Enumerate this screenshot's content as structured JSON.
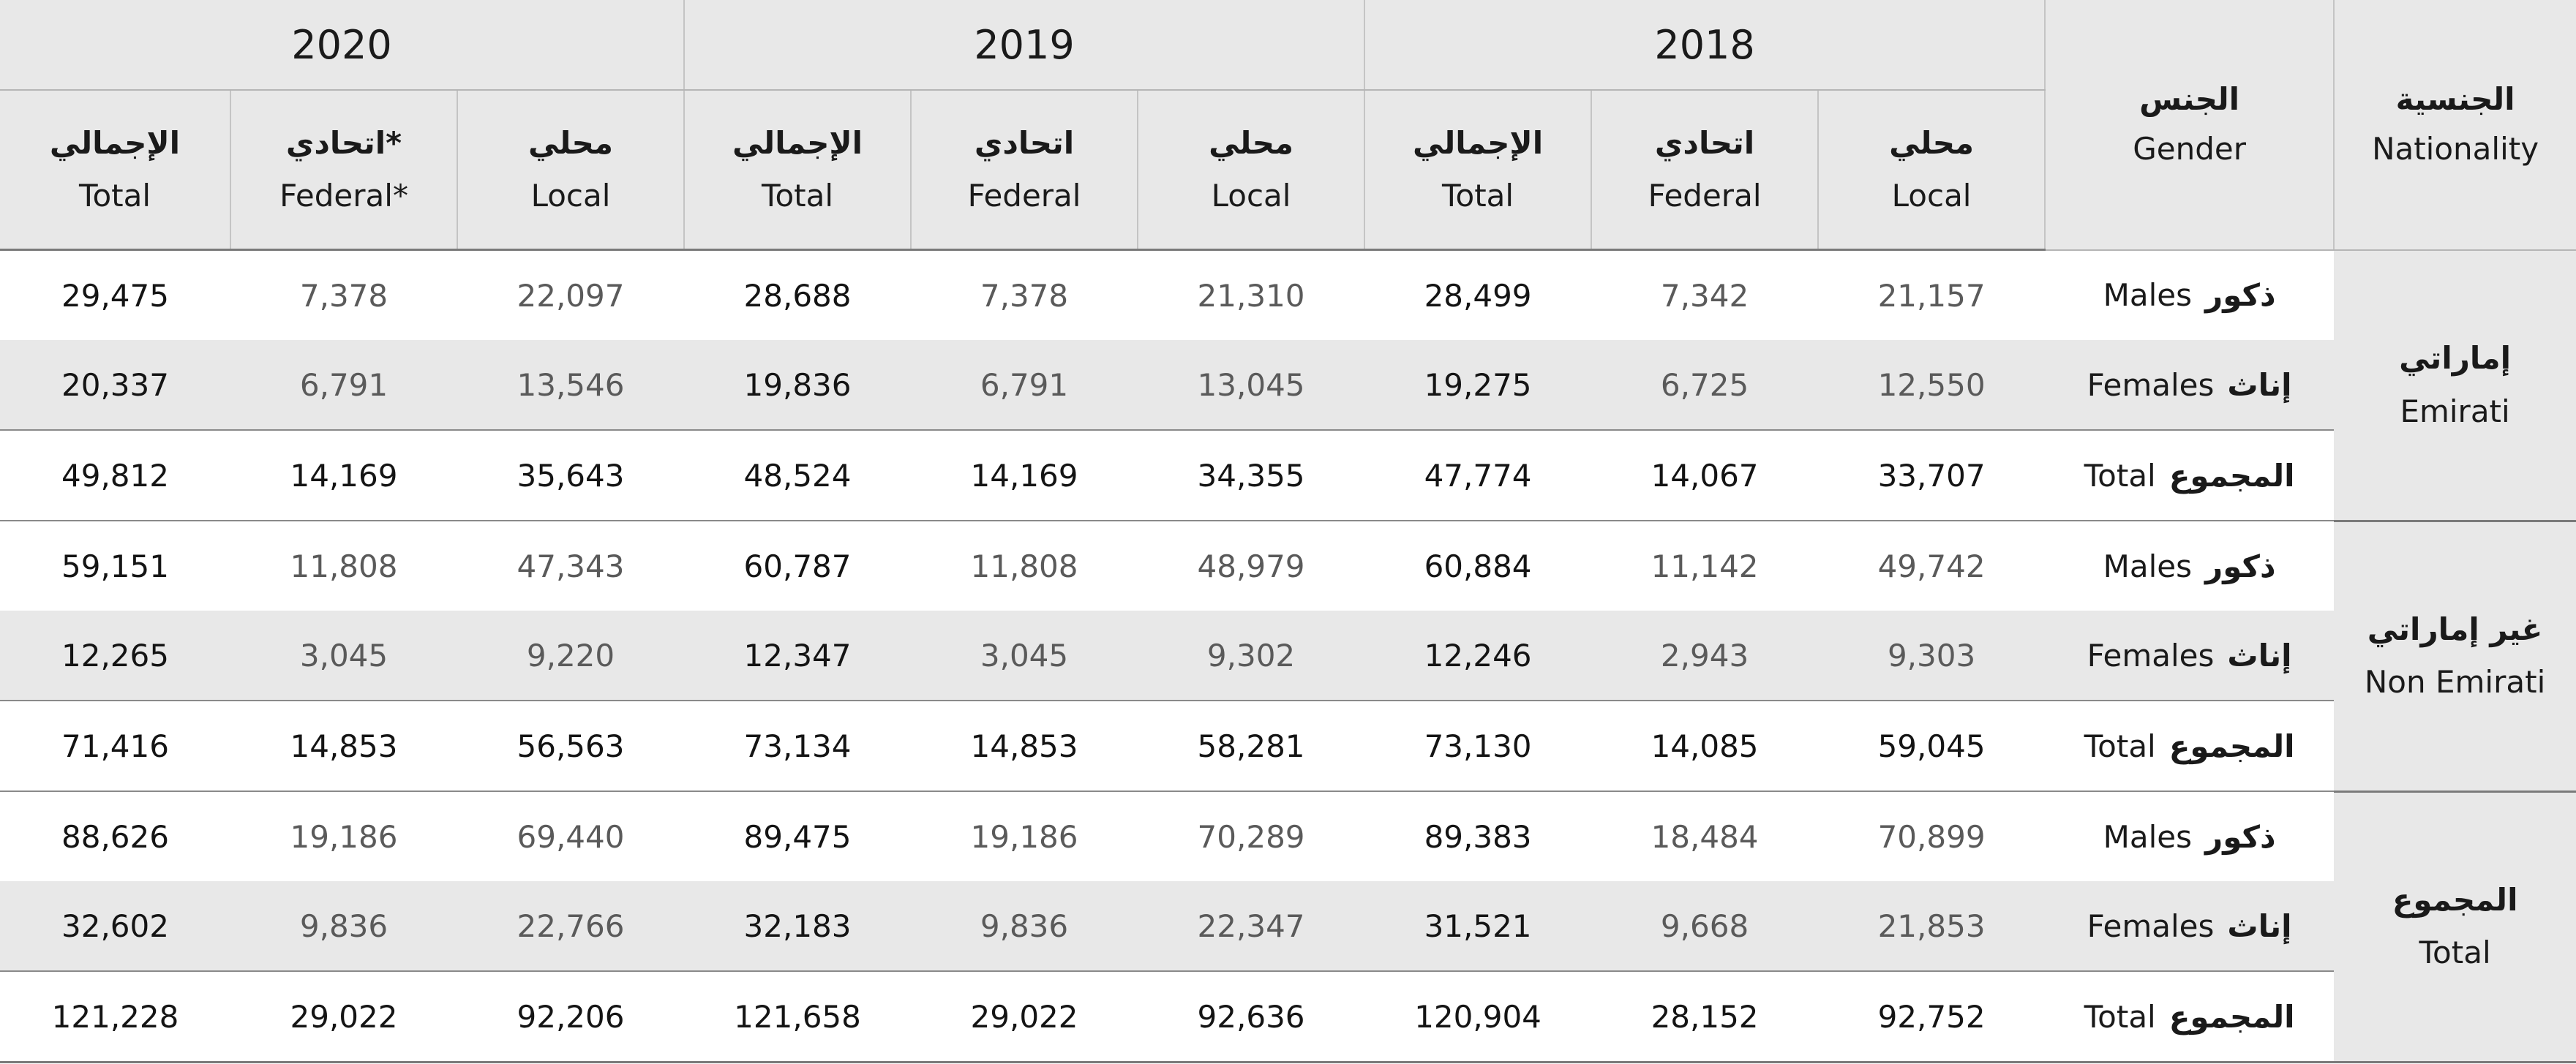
{
  "years": [
    "2020",
    "2019",
    "2018"
  ],
  "sub_headers": {
    "2020": [
      {
        "ar": "الإجمالي",
        "en": "Total"
      },
      {
        "ar": "اتحادي*",
        "en": "Federal*"
      },
      {
        "ar": "محلي",
        "en": "Local"
      }
    ],
    "2019": [
      {
        "ar": "الإجمالي",
        "en": "Total"
      },
      {
        "ar": "اتحادي",
        "en": "Federal"
      },
      {
        "ar": "محلي",
        "en": "Local"
      }
    ],
    "2018": [
      {
        "ar": "الإجمالي",
        "en": "Total"
      },
      {
        "ar": "اتحادي",
        "en": "Federal"
      },
      {
        "ar": "محلي",
        "en": "Local"
      }
    ]
  },
  "gender_header": {
    "ar": "الجنس",
    "en": "Gender"
  },
  "nationality_header": {
    "ar": "الجنسية",
    "en": "Nationality"
  },
  "groups": [
    {
      "nationality": {
        "ar": "إماراتي",
        "en": "Emirati"
      },
      "rows": [
        {
          "gender_ar": "ذكور",
          "gender_en": "Males",
          "values": [
            "29,475",
            "7,378",
            "22,097",
            "28,688",
            "7,378",
            "21,310",
            "28,499",
            "7,342",
            "21,157"
          ]
        },
        {
          "gender_ar": "إناث",
          "gender_en": "Females",
          "values": [
            "20,337",
            "6,791",
            "13,546",
            "19,836",
            "6,791",
            "13,045",
            "19,275",
            "6,725",
            "12,550"
          ]
        },
        {
          "gender_ar": "المجموع",
          "gender_en": "Total",
          "values": [
            "49,812",
            "14,169",
            "35,643",
            "48,524",
            "14,169",
            "34,355",
            "47,774",
            "14,067",
            "33,707"
          ]
        }
      ]
    },
    {
      "nationality": {
        "ar": "غير إماراتي",
        "en": "Non Emirati"
      },
      "rows": [
        {
          "gender_ar": "ذكور",
          "gender_en": "Males",
          "values": [
            "59,151",
            "11,808",
            "47,343",
            "60,787",
            "11,808",
            "48,979",
            "60,884",
            "11,142",
            "49,742"
          ]
        },
        {
          "gender_ar": "إناث",
          "gender_en": "Females",
          "values": [
            "12,265",
            "3,045",
            "9,220",
            "12,347",
            "3,045",
            "9,302",
            "12,246",
            "2,943",
            "9,303"
          ]
        },
        {
          "gender_ar": "المجموع",
          "gender_en": "Total",
          "values": [
            "71,416",
            "14,853",
            "56,563",
            "73,134",
            "14,853",
            "58,281",
            "73,130",
            "14,085",
            "59,045"
          ]
        }
      ]
    },
    {
      "nationality": {
        "ar": "المجموع",
        "en": "Total"
      },
      "rows": [
        {
          "gender_ar": "ذكور",
          "gender_en": "Males",
          "values": [
            "88,626",
            "19,186",
            "69,440",
            "89,475",
            "19,186",
            "70,289",
            "89,383",
            "18,484",
            "70,899"
          ]
        },
        {
          "gender_ar": "إناث",
          "gender_en": "Females",
          "values": [
            "32,602",
            "9,836",
            "22,766",
            "32,183",
            "9,836",
            "22,347",
            "31,521",
            "9,668",
            "21,853"
          ]
        },
        {
          "gender_ar": "المجموع",
          "gender_en": "Total",
          "values": [
            "121,228",
            "29,022",
            "92,206",
            "121,658",
            "29,022",
            "92,636",
            "120,904",
            "28,152",
            "92,752"
          ]
        }
      ]
    }
  ]
}
